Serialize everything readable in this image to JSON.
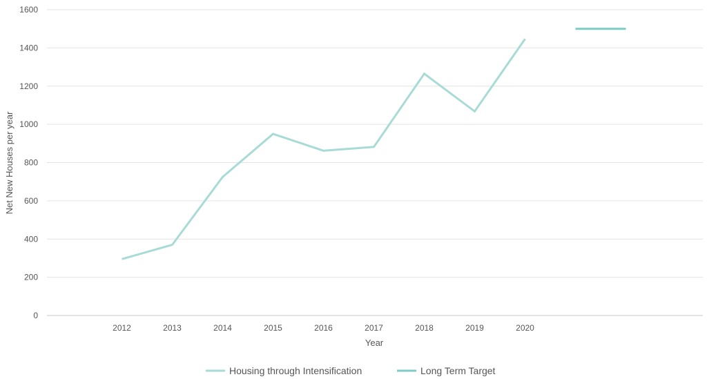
{
  "chart_data": {
    "type": "line",
    "title": "",
    "xlabel": "Year",
    "ylabel": "Net New Houses per year",
    "ylim": [
      0,
      1600
    ],
    "yticks": [
      0,
      200,
      400,
      600,
      800,
      1000,
      1200,
      1400,
      1600
    ],
    "categories": [
      "2012",
      "2013",
      "2014",
      "2015",
      "2016",
      "2017",
      "2018",
      "2019",
      "2020",
      "",
      ""
    ],
    "grid": true,
    "legend_position": "bottom",
    "series": [
      {
        "name": "Housing through Intensification",
        "color": "#a8dbd6",
        "values": [
          295,
          370,
          725,
          950,
          862,
          882,
          1265,
          1068,
          1447,
          null,
          null
        ]
      },
      {
        "name": "Long Term Target",
        "color": "#7dccc4",
        "values": [
          null,
          null,
          null,
          null,
          null,
          null,
          null,
          null,
          null,
          1500,
          1500
        ]
      }
    ]
  }
}
